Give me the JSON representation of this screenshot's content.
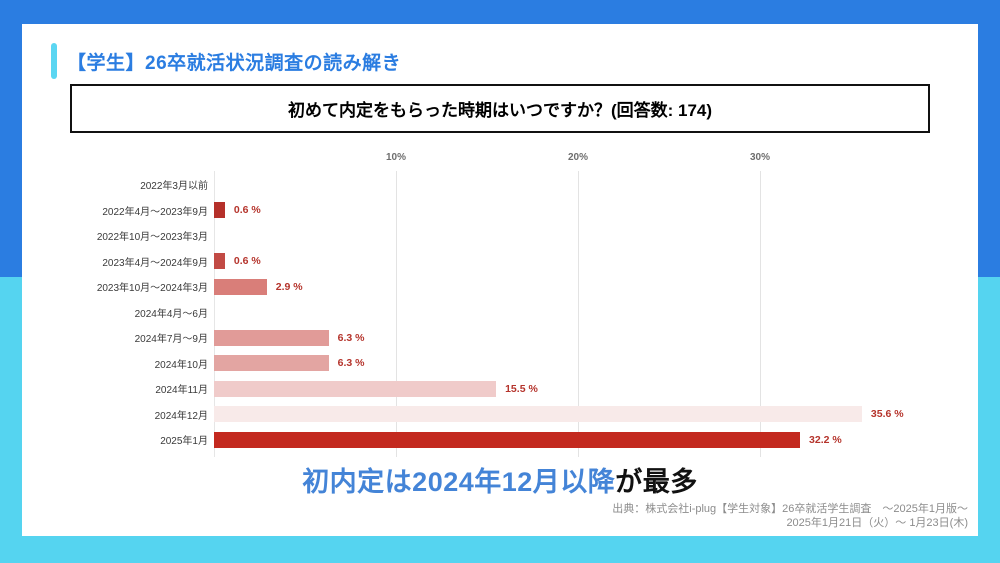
{
  "header": {
    "title": "【学生】26卒就活状況調査の読み解き"
  },
  "question": {
    "title": "初めて内定をもらった時期はいつですか？(回答数: 174)"
  },
  "headline": {
    "highlight": "初内定は2024年12月以降",
    "rest": "が最多"
  },
  "source": {
    "line1": "出典：株式会社i-plug【学生対象】26卒就活学生調査　～2025年1月版～",
    "line2": "2025年1月21日（火）～ 1月23日(木)"
  },
  "colors": {
    "bg_top": "#2b7de1",
    "bg_bottom": "#55d4f0",
    "accent_bar": "#5bd6f2",
    "title_blue": "#2b7de1",
    "headline_blue": "#4484d7",
    "value_label_red": "#b5342c"
  },
  "chart_data": {
    "type": "bar",
    "orientation": "horizontal",
    "title": "初めて内定をもらった時期はいつですか？(回答数: 174)",
    "response_count": 174,
    "categories": [
      "2022年3月以前",
      "2022年4月～2023年9月",
      "2022年10月～2023年3月",
      "2023年4月～2024年9月",
      "2023年10月～2024年3月",
      "2024年4月～6月",
      "2024年7月～9月",
      "2024年10月",
      "2024年11月",
      "2024年12月",
      "2025年1月"
    ],
    "values": [
      0,
      0.6,
      0,
      0.6,
      2.9,
      0,
      6.3,
      6.3,
      15.5,
      35.6,
      32.2
    ],
    "value_labels": [
      "",
      "0.6 %",
      "",
      "0.6 %",
      "2.9 %",
      "",
      "6.3 %",
      "6.3 %",
      "15.5 %",
      "35.6 %",
      "32.2 %"
    ],
    "bar_colors": [
      "",
      "#b5302a",
      "",
      "#c24a44",
      "#d97e79",
      "",
      "#e19b98",
      "#e3a5a2",
      "#f0cbca",
      "#f8eae9",
      "#c3291f"
    ],
    "x_ticks": [
      {
        "label": "10%",
        "value": 10
      },
      {
        "label": "20%",
        "value": 20
      },
      {
        "label": "30%",
        "value": 30
      }
    ],
    "xlim": [
      0,
      40
    ],
    "grid": true,
    "unit": "%"
  }
}
